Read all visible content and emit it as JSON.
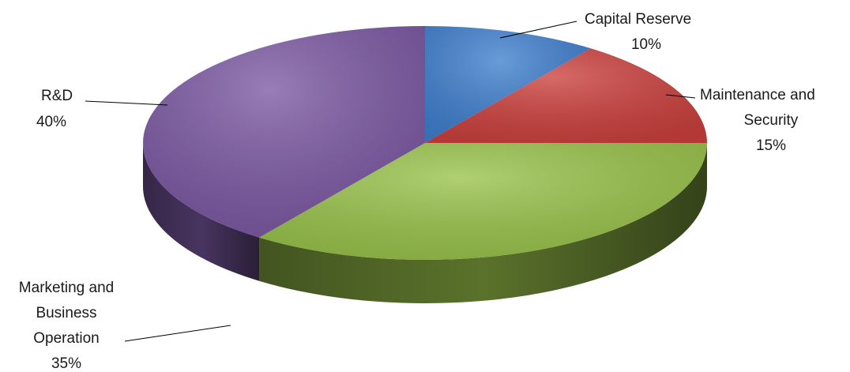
{
  "chart_data": {
    "type": "pie",
    "style": "3d-pie",
    "title": "",
    "slices": [
      {
        "label": "Capital Reserve",
        "label_lines": [
          "Capital Reserve"
        ],
        "value": 10,
        "value_label": "10%",
        "color": "#3f7fce"
      },
      {
        "label": "Maintenance and Security",
        "label_lines": [
          "Maintenance and",
          "Security"
        ],
        "value": 15,
        "value_label": "15%",
        "color": "#cb403d"
      },
      {
        "label": "Marketing and Business Operation",
        "label_lines": [
          "Marketing and",
          "Business",
          "Operation"
        ],
        "value": 35,
        "value_label": "35%",
        "color": "#99c24a"
      },
      {
        "label": "R&D",
        "label_lines": [
          "R&D"
        ],
        "value": 40,
        "value_label": "40%",
        "color": "#7b58a3"
      }
    ],
    "legend": "none"
  }
}
